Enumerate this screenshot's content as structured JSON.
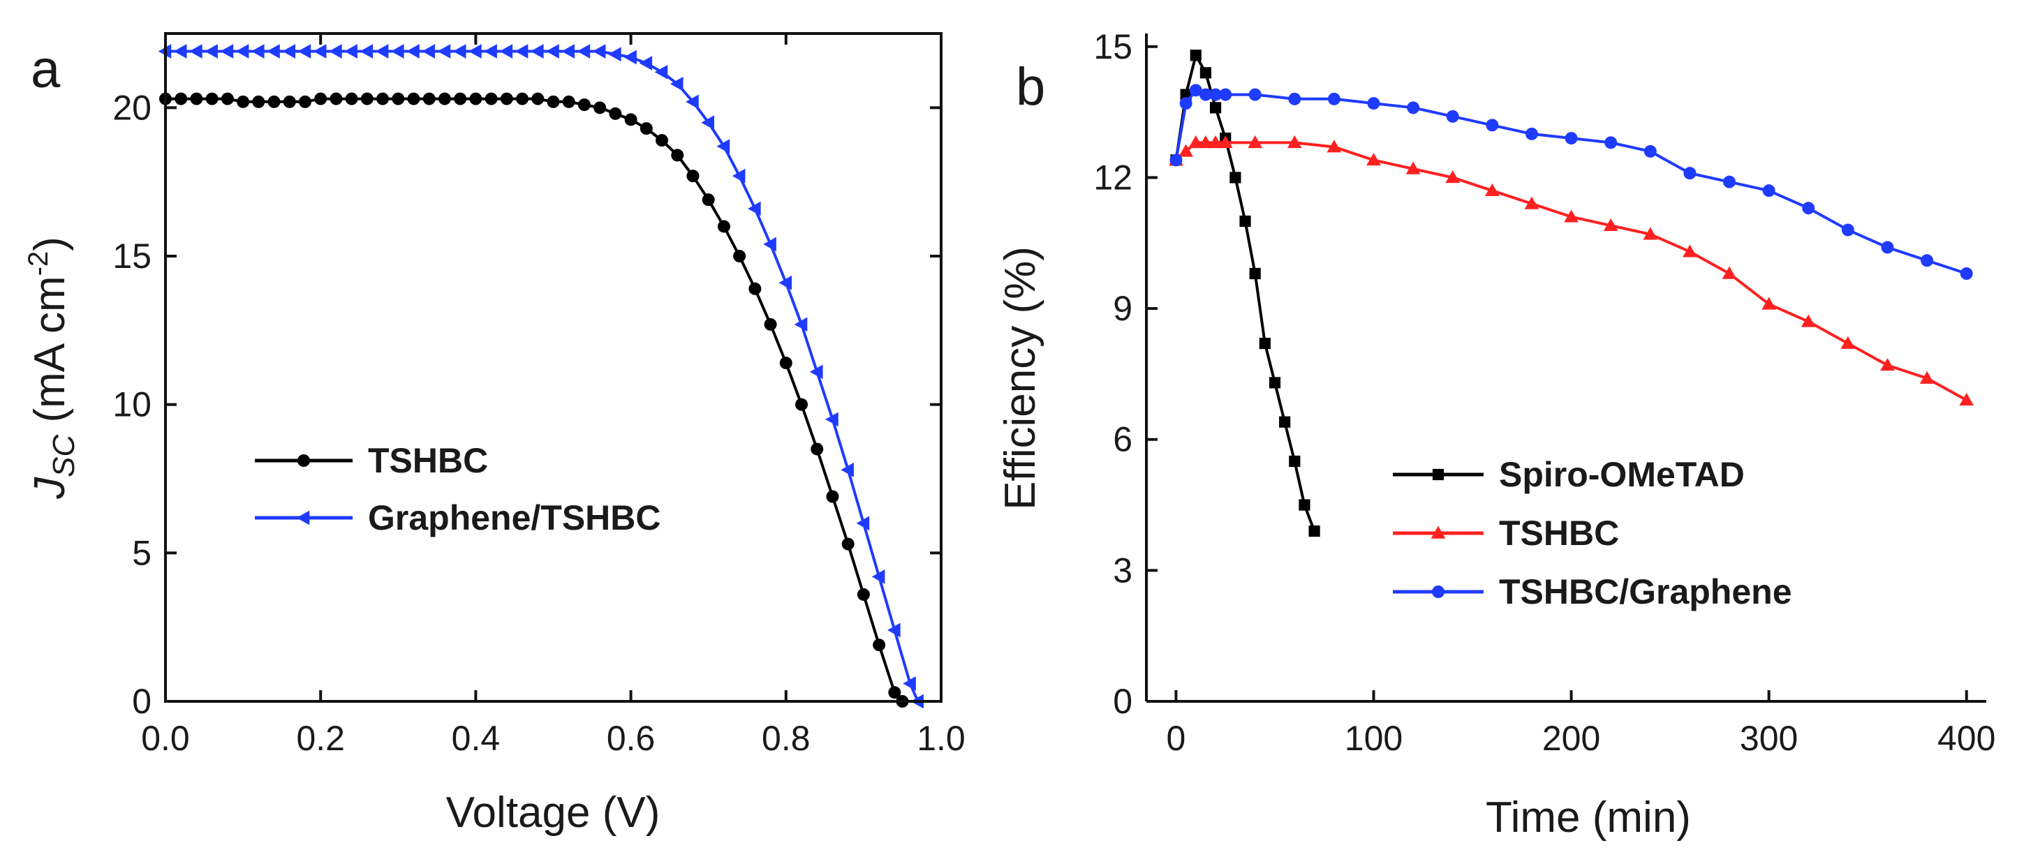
{
  "chart_data": [
    {
      "panel": "a",
      "type": "line",
      "title": "",
      "xlabel": "Voltage (V)",
      "ylabel_main": "J",
      "ylabel_sub": "SC",
      "ylabel_unit_pre": " (mA cm",
      "ylabel_unit_sup": "-2",
      "ylabel_unit_post": ")",
      "xlim": [
        0,
        1.0
      ],
      "ylim": [
        0,
        22.5
      ],
      "xticks": [
        0.0,
        0.2,
        0.4,
        0.6,
        0.8,
        1.0
      ],
      "xtick_labels": [
        "0.0",
        "0.2",
        "0.4",
        "0.6",
        "0.8",
        "1.0"
      ],
      "yticks": [
        0,
        5,
        10,
        15,
        20
      ],
      "ytick_labels": [
        "0",
        "5",
        "10",
        "15",
        "20"
      ],
      "grid": false,
      "legend_position": "center-left",
      "series": [
        {
          "name": "TSHBC",
          "color": "#000000",
          "marker": "circle",
          "x": [
            0.0,
            0.02,
            0.04,
            0.06,
            0.08,
            0.1,
            0.12,
            0.14,
            0.16,
            0.18,
            0.2,
            0.22,
            0.24,
            0.26,
            0.28,
            0.3,
            0.32,
            0.34,
            0.36,
            0.38,
            0.4,
            0.42,
            0.44,
            0.46,
            0.48,
            0.5,
            0.52,
            0.54,
            0.56,
            0.58,
            0.6,
            0.62,
            0.64,
            0.66,
            0.68,
            0.7,
            0.72,
            0.74,
            0.76,
            0.78,
            0.8,
            0.82,
            0.84,
            0.86,
            0.88,
            0.9,
            0.92,
            0.94,
            0.95
          ],
          "y": [
            20.3,
            20.3,
            20.3,
            20.3,
            20.3,
            20.2,
            20.2,
            20.2,
            20.2,
            20.2,
            20.3,
            20.3,
            20.3,
            20.3,
            20.3,
            20.3,
            20.3,
            20.3,
            20.3,
            20.3,
            20.3,
            20.3,
            20.3,
            20.3,
            20.3,
            20.2,
            20.2,
            20.1,
            20.0,
            19.8,
            19.6,
            19.3,
            18.9,
            18.4,
            17.7,
            16.9,
            16.0,
            15.0,
            13.9,
            12.7,
            11.4,
            10.0,
            8.5,
            6.9,
            5.3,
            3.6,
            1.9,
            0.3,
            0.0
          ]
        },
        {
          "name": "Graphene/TSHBC",
          "color": "#1f3bff",
          "marker": "triangle-left",
          "x": [
            0.0,
            0.02,
            0.04,
            0.06,
            0.08,
            0.1,
            0.12,
            0.14,
            0.16,
            0.18,
            0.2,
            0.22,
            0.24,
            0.26,
            0.28,
            0.3,
            0.32,
            0.34,
            0.36,
            0.38,
            0.4,
            0.42,
            0.44,
            0.46,
            0.48,
            0.5,
            0.52,
            0.54,
            0.56,
            0.58,
            0.6,
            0.62,
            0.64,
            0.66,
            0.68,
            0.7,
            0.72,
            0.74,
            0.76,
            0.78,
            0.8,
            0.82,
            0.84,
            0.86,
            0.88,
            0.9,
            0.92,
            0.94,
            0.96,
            0.97
          ],
          "y": [
            21.9,
            21.9,
            21.9,
            21.9,
            21.9,
            21.9,
            21.9,
            21.9,
            21.9,
            21.9,
            21.9,
            21.9,
            21.9,
            21.9,
            21.9,
            21.9,
            21.9,
            21.9,
            21.9,
            21.9,
            21.9,
            21.9,
            21.9,
            21.9,
            21.9,
            21.9,
            21.9,
            21.9,
            21.9,
            21.8,
            21.7,
            21.5,
            21.2,
            20.8,
            20.2,
            19.5,
            18.7,
            17.7,
            16.6,
            15.4,
            14.1,
            12.7,
            11.1,
            9.5,
            7.8,
            6.0,
            4.2,
            2.4,
            0.6,
            0.0
          ]
        }
      ]
    },
    {
      "panel": "b",
      "type": "line",
      "title": "",
      "xlabel": "Time (min)",
      "ylabel": "Efficiency (%)",
      "xlim": [
        -15,
        410
      ],
      "ylim": [
        0,
        15.3
      ],
      "xticks": [
        0,
        100,
        200,
        300,
        400
      ],
      "xtick_labels": [
        "0",
        "100",
        "200",
        "300",
        "400"
      ],
      "yticks": [
        0,
        3,
        6,
        9,
        12,
        15
      ],
      "ytick_labels": [
        "0",
        "3",
        "6",
        "9",
        "12",
        "15"
      ],
      "grid": false,
      "legend_position": "bottom-right",
      "series": [
        {
          "name": "Spiro-OMeTAD",
          "color": "#000000",
          "marker": "square",
          "x": [
            0,
            5,
            10,
            15,
            20,
            25,
            30,
            35,
            40,
            45,
            50,
            55,
            60,
            65,
            70
          ],
          "y": [
            12.4,
            13.9,
            14.8,
            14.4,
            13.6,
            12.9,
            12.0,
            11.0,
            9.8,
            8.2,
            7.3,
            6.4,
            5.5,
            4.5,
            3.9
          ]
        },
        {
          "name": "TSHBC",
          "color": "#ff2020",
          "marker": "triangle-up",
          "x": [
            0,
            5,
            10,
            15,
            20,
            25,
            40,
            60,
            80,
            100,
            120,
            140,
            160,
            180,
            200,
            220,
            240,
            260,
            280,
            300,
            320,
            340,
            360,
            380,
            400
          ],
          "y": [
            12.4,
            12.6,
            12.8,
            12.8,
            12.8,
            12.8,
            12.8,
            12.8,
            12.7,
            12.4,
            12.2,
            12.0,
            11.7,
            11.4,
            11.1,
            10.9,
            10.7,
            10.3,
            9.8,
            9.1,
            8.7,
            8.2,
            7.7,
            7.4,
            6.9
          ]
        },
        {
          "name": "TSHBC/Graphene",
          "color": "#1f3bff",
          "marker": "circle",
          "x": [
            0,
            5,
            10,
            15,
            20,
            25,
            40,
            60,
            80,
            100,
            120,
            140,
            160,
            180,
            200,
            220,
            240,
            260,
            280,
            300,
            320,
            340,
            360,
            380,
            400
          ],
          "y": [
            12.4,
            13.7,
            14.0,
            13.9,
            13.9,
            13.9,
            13.9,
            13.8,
            13.8,
            13.7,
            13.6,
            13.4,
            13.2,
            13.0,
            12.9,
            12.8,
            12.6,
            12.1,
            11.9,
            11.7,
            11.3,
            10.8,
            10.4,
            10.1,
            9.8
          ]
        }
      ]
    }
  ]
}
